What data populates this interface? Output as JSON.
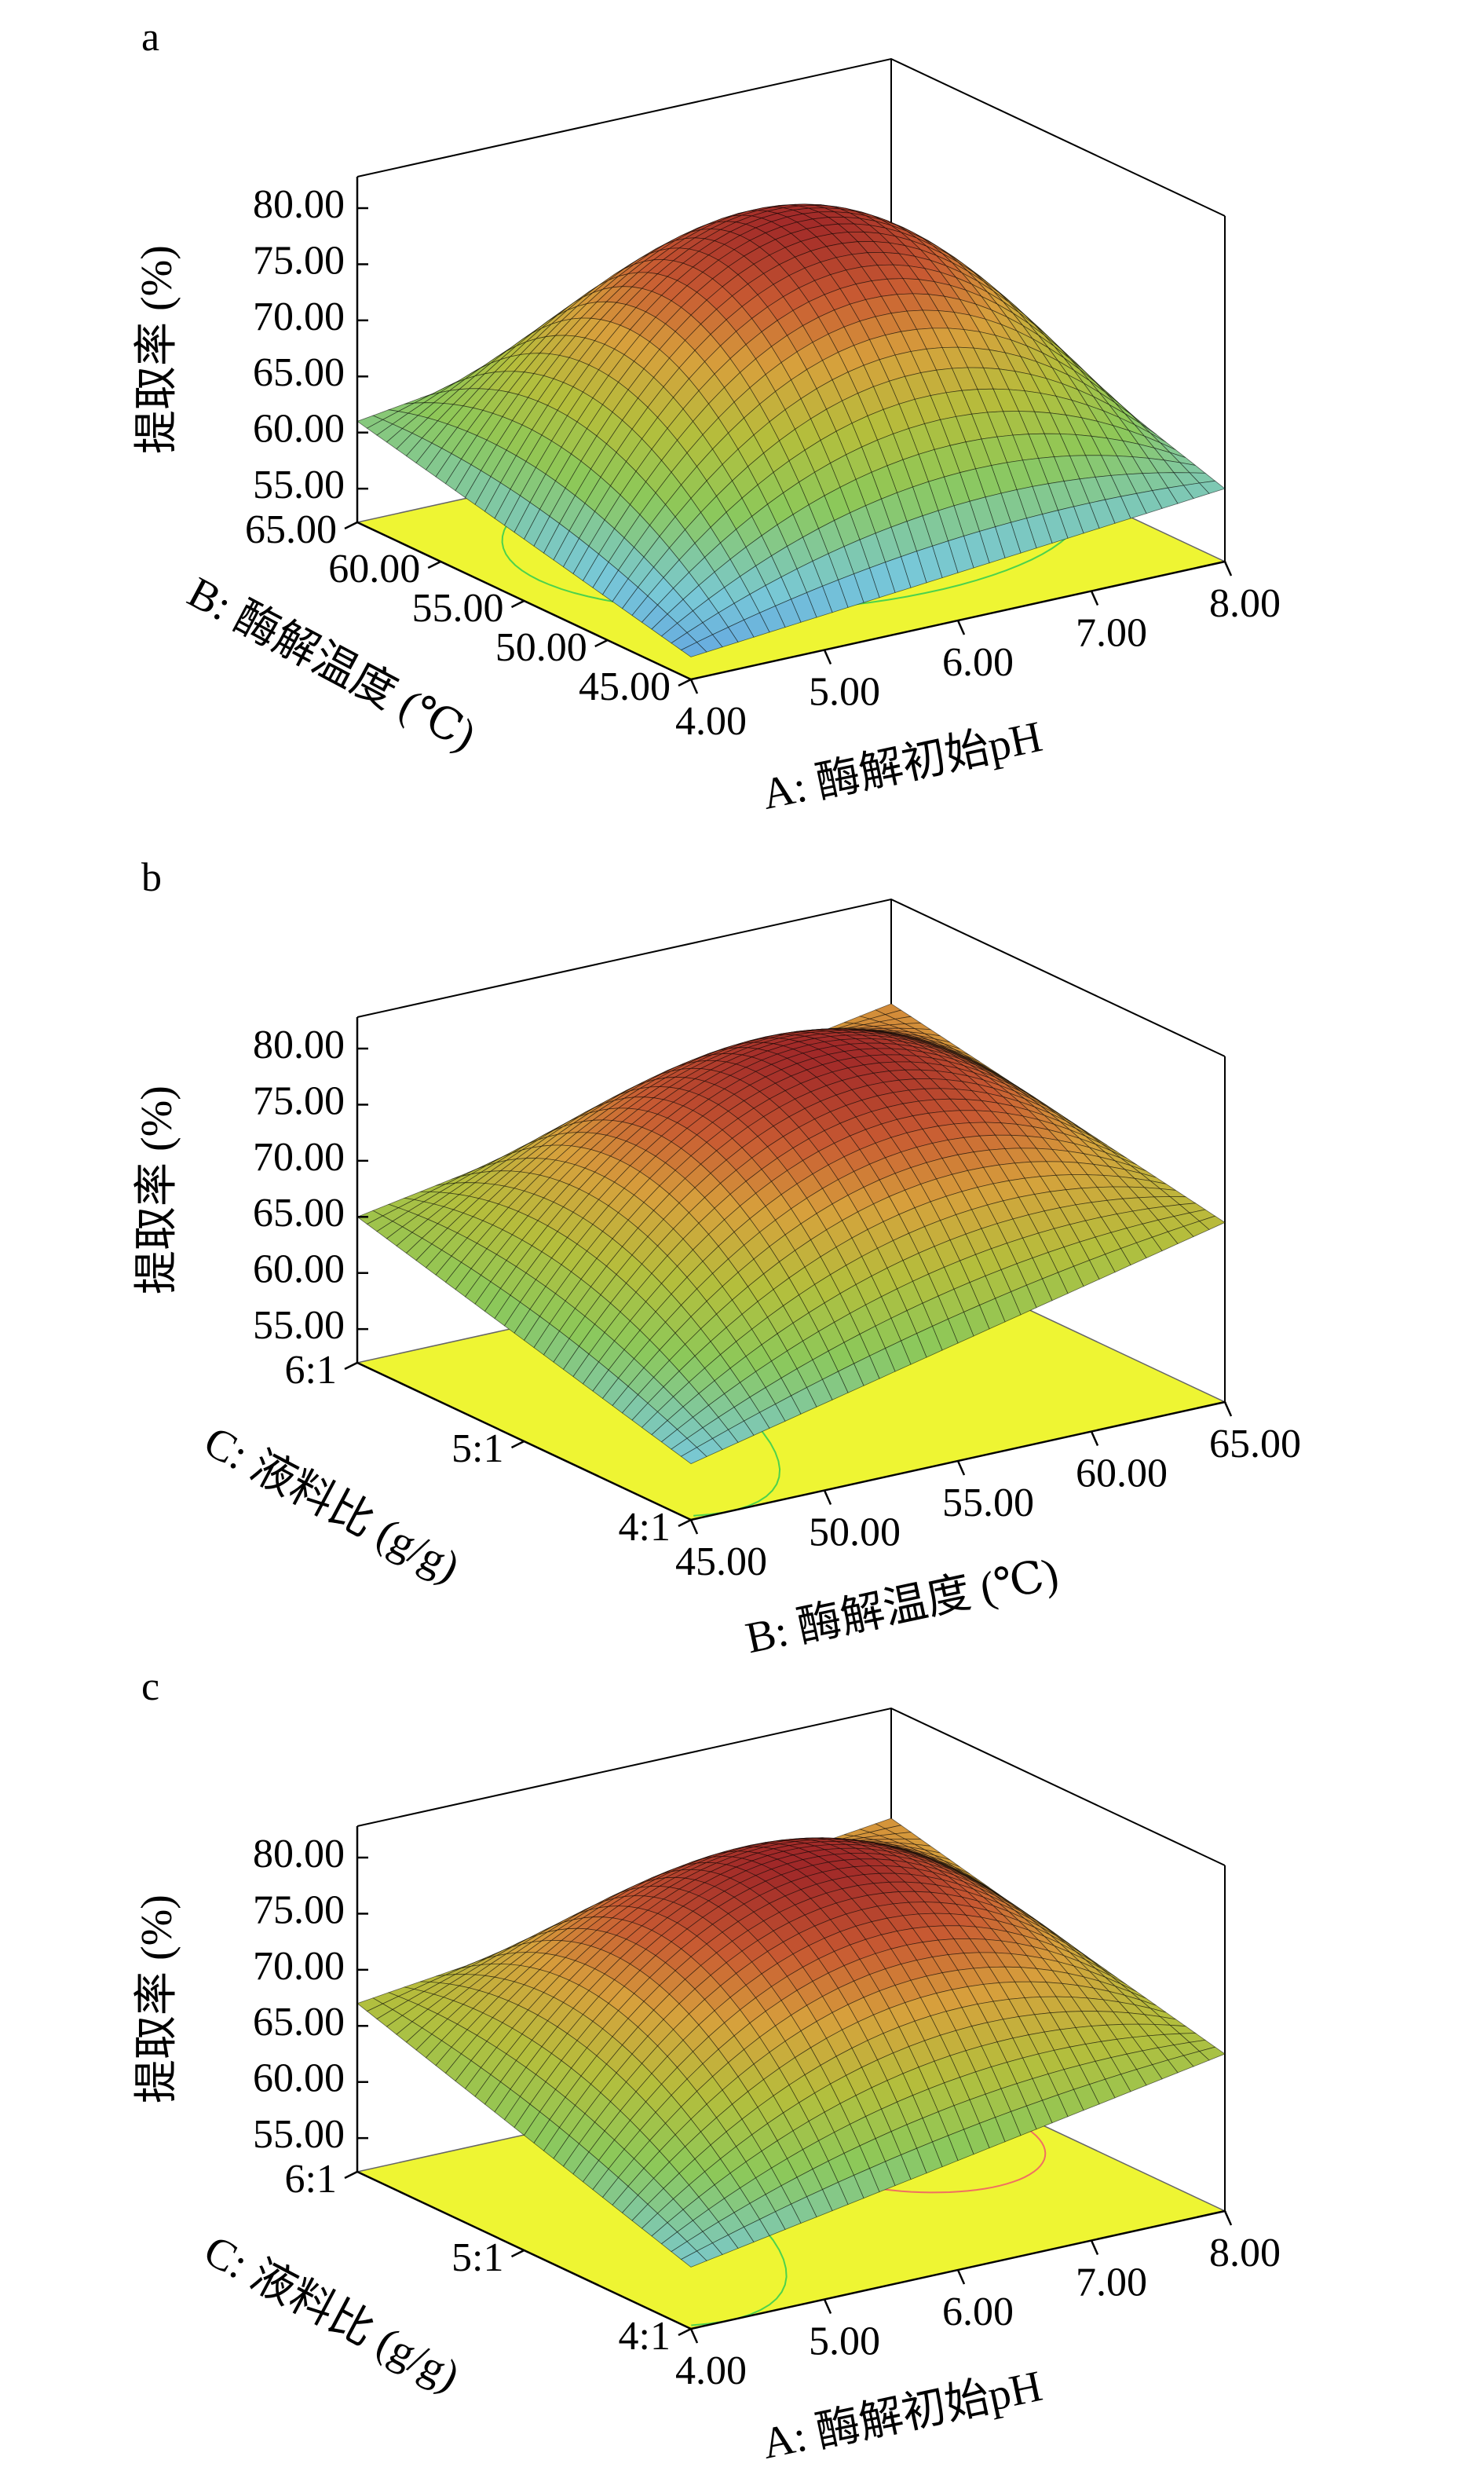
{
  "chart_data": [
    {
      "type": "surface3d",
      "panel_label": "a",
      "x": {
        "label": "A: 酶解初始pH",
        "ticks": [
          "4.00",
          "5.00",
          "6.00",
          "7.00",
          "8.00"
        ],
        "range": [
          4,
          8
        ]
      },
      "y": {
        "label": "B: 酶解温度 (℃)",
        "ticks": [
          "45.00",
          "50.00",
          "55.00",
          "60.00",
          "65.00"
        ],
        "range": [
          45,
          65
        ]
      },
      "z": {
        "label": "提取率 (%)",
        "ticks": [
          "55.00",
          "60.00",
          "65.00",
          "70.00",
          "75.00",
          "80.00"
        ],
        "range": [
          52,
          80
        ]
      },
      "surface_values": {
        "center": 79.5,
        "corner_x_min_y_max": 61.0,
        "corner_x_max_y_max": 68.0,
        "corner_x_min_y_min": 54.0,
        "corner_x_max_y_min": 58.5
      },
      "floor_contours": [
        {
          "color": "#4cd24c",
          "shape": "ellipse",
          "center": [
            6.2,
            56.5
          ],
          "radius": [
            1.9,
            8.5
          ]
        }
      ]
    },
    {
      "type": "surface3d",
      "panel_label": "b",
      "x": {
        "label": "B: 酶解温度 (℃)",
        "ticks": [
          "45.00",
          "50.00",
          "55.00",
          "60.00",
          "65.00"
        ],
        "range": [
          45,
          65
        ]
      },
      "y": {
        "label": "C: 液料比 (g/g)",
        "ticks": [
          "4:1",
          "5:1",
          "6:1"
        ],
        "range": [
          4,
          6
        ]
      },
      "z": {
        "label": "提取率 (%)",
        "ticks": [
          "55.00",
          "60.00",
          "65.00",
          "70.00",
          "75.00",
          "80.00"
        ],
        "range": [
          52,
          80
        ]
      },
      "surface_values": {
        "center": 79.3,
        "corner_x_min_y_max": 65.0,
        "corner_x_max_y_max": 73.5,
        "corner_x_min_y_min": 57.0,
        "corner_x_max_y_min": 68.0
      },
      "floor_contours": [
        {
          "color": "#4cd24c",
          "shape": "arc",
          "center": [
            46.5,
            6.0
          ],
          "radius": [
            7.0,
            2.0
          ]
        }
      ]
    },
    {
      "type": "surface3d",
      "panel_label": "c",
      "x": {
        "label": "A: 酶解初始pH",
        "ticks": [
          "4.00",
          "5.00",
          "6.00",
          "7.00",
          "8.00"
        ],
        "range": [
          4,
          8
        ]
      },
      "y": {
        "label": "C: 液料比 (g/g)",
        "ticks": [
          "4:1",
          "5:1",
          "6:1"
        ],
        "range": [
          4,
          6
        ]
      },
      "z": {
        "label": "提取率 (%)",
        "ticks": [
          "55.00",
          "60.00",
          "65.00",
          "70.00",
          "75.00",
          "80.00"
        ],
        "range": [
          52,
          80
        ]
      },
      "surface_values": {
        "center": 79.6,
        "corner_x_min_y_max": 67.0,
        "corner_x_max_y_max": 73.0,
        "corner_x_min_y_min": 57.5,
        "corner_x_max_y_min": 66.0
      },
      "floor_contours": [
        {
          "color": "#4cd24c",
          "shape": "arc",
          "center": [
            4.3,
            6.0
          ],
          "radius": [
            1.5,
            2.0
          ]
        },
        {
          "color": "#f07060",
          "shape": "ellipse",
          "center": [
            7.1,
            5.2
          ],
          "radius": [
            0.8,
            0.55
          ]
        }
      ]
    }
  ]
}
